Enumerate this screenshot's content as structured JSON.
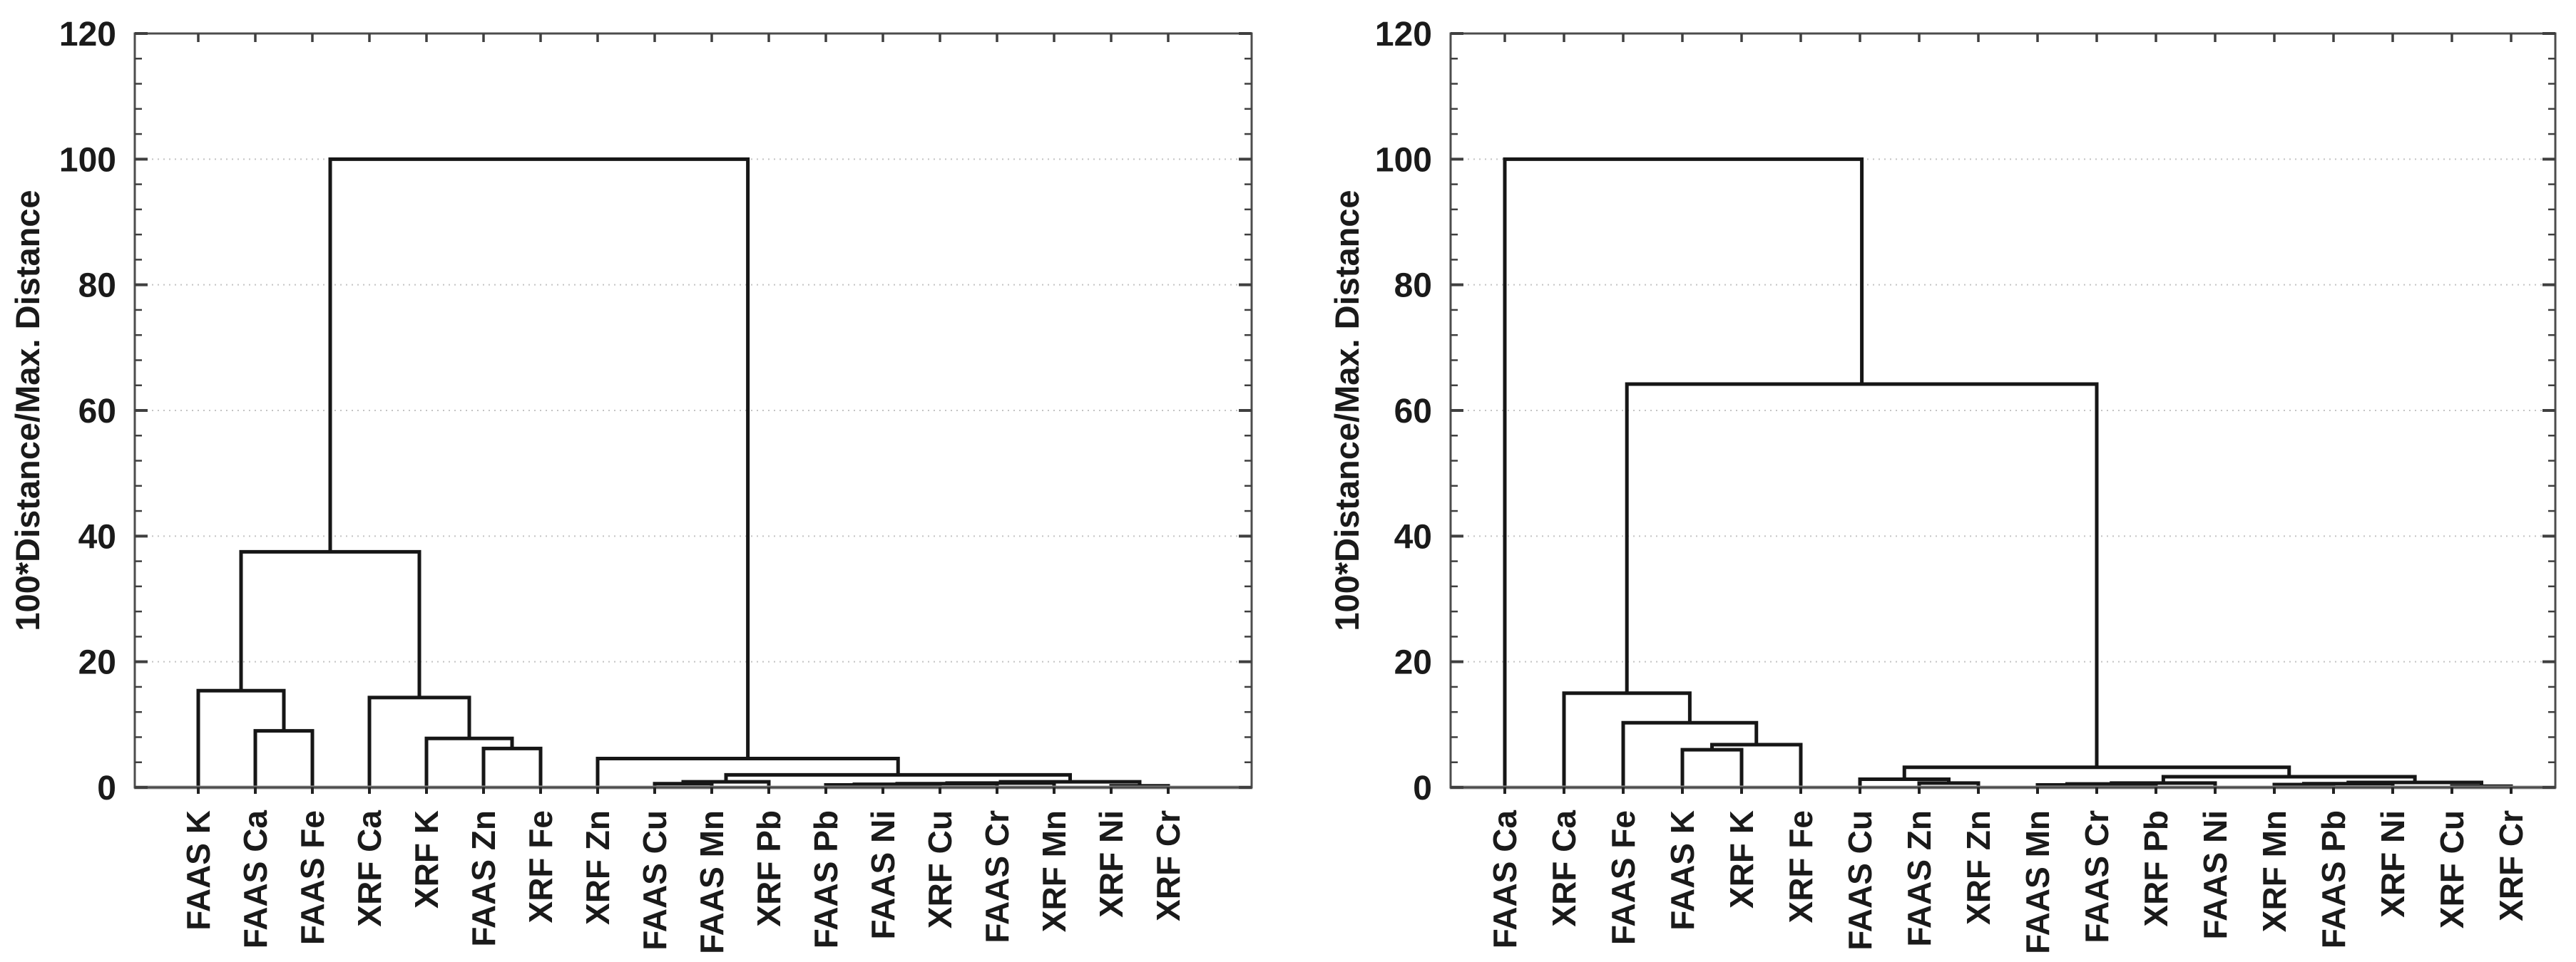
{
  "figure": {
    "description": "Two hierarchical cluster analysis dendrograms comparing FAAS and XRF element measurements",
    "background": "#ffffff"
  },
  "colors": {
    "tree_line": "#161616",
    "baseline": "#9c9c9c",
    "axis_box": "#4d4d4d",
    "gridline": "#c4c4c4",
    "tick": "#3f3f3f",
    "label_text": "#1a1a1a"
  },
  "chart_data": [
    {
      "type": "dendrogram",
      "panel": "left",
      "title": "",
      "xlabel": "",
      "ylabel": "100*Distance/Max. Distance",
      "ylim": [
        0,
        120
      ],
      "yticks": [
        0,
        20,
        40,
        60,
        80,
        100,
        120
      ],
      "minor_tick_step": 4,
      "grid": "dotted horizontal gridlines at major ticks",
      "legend": "none",
      "leaf_order": [
        "FAAS K",
        "FAAS Ca",
        "FAAS Fe",
        "XRF Ca",
        "XRF K",
        "FAAS Zn",
        "XRF Fe",
        "XRF Zn",
        "FAAS Cu",
        "FAAS Mn",
        "XRF Pb",
        "FAAS Pb",
        "FAAS Ni",
        "XRF Cu",
        "FAAS Cr",
        "XRF Mn",
        "XRF Ni",
        "XRF Cr"
      ],
      "tree": {
        "h": 100,
        "children": [
          {
            "h": 37.5,
            "children": [
              {
                "h": 15.4,
                "children": [
                  "FAAS K",
                  {
                    "h": 9.0,
                    "children": [
                      "FAAS Ca",
                      "FAAS Fe"
                    ]
                  }
                ]
              },
              {
                "h": 14.3,
                "children": [
                  "XRF Ca",
                  {
                    "h": 7.8,
                    "children": [
                      "XRF K",
                      {
                        "h": 6.2,
                        "children": [
                          "FAAS Zn",
                          "XRF Fe"
                        ]
                      }
                    ]
                  }
                ]
              }
            ]
          },
          {
            "h": 4.6,
            "children": [
              "XRF Zn",
              {
                "h": 2.0,
                "children": [
                  {
                    "h": 0.9,
                    "children": [
                      {
                        "h": 0.6,
                        "children": [
                          "FAAS Cu",
                          "FAAS Mn"
                        ]
                      },
                      "XRF Pb"
                    ]
                  },
                  {
                    "h": 0.9,
                    "children": [
                      {
                        "h": 0.7,
                        "children": [
                          {
                            "h": 0.6,
                            "children": [
                              {
                                "h": 0.5,
                                "children": [
                                  {
                                    "h": 0.4,
                                    "children": [
                                      "FAAS Pb",
                                      "FAAS Ni"
                                    ]
                                  },
                                  "XRF Cu"
                                ]
                              },
                              "FAAS Cr"
                            ]
                          },
                          "XRF Mn"
                        ]
                      },
                      {
                        "h": 0.25,
                        "children": [
                          "XRF Ni",
                          "XRF Cr"
                        ]
                      }
                    ]
                  }
                ]
              }
            ]
          }
        ]
      }
    },
    {
      "type": "dendrogram",
      "panel": "right",
      "title": "",
      "xlabel": "",
      "ylabel": "100*Distance/Max. Distance",
      "ylim": [
        0,
        120
      ],
      "yticks": [
        0,
        20,
        40,
        60,
        80,
        100,
        120
      ],
      "minor_tick_step": 4,
      "grid": "dotted horizontal gridlines at major ticks",
      "legend": "none",
      "leaf_order": [
        "FAAS Ca",
        "XRF Ca",
        "FAAS Fe",
        "FAAS K",
        "XRF K",
        "XRF Fe",
        "FAAS Cu",
        "FAAS Zn",
        "XRF Zn",
        "FAAS Mn",
        "FAAS Cr",
        "XRF Pb",
        "FAAS Ni",
        "XRF Mn",
        "FAAS Pb",
        "XRF Ni",
        "XRF Cu",
        "XRF Cr"
      ],
      "tree": {
        "h": 100,
        "children": [
          "FAAS Ca",
          {
            "h": 64.2,
            "children": [
              {
                "h": 15.0,
                "children": [
                  "XRF Ca",
                  {
                    "h": 10.3,
                    "children": [
                      "FAAS Fe",
                      {
                        "h": 6.8,
                        "children": [
                          {
                            "h": 6.0,
                            "children": [
                              "FAAS K",
                              "XRF K"
                            ]
                          },
                          "XRF Fe"
                        ]
                      }
                    ]
                  }
                ]
              },
              {
                "h": 3.2,
                "children": [
                  {
                    "h": 1.3,
                    "children": [
                      "FAAS Cu",
                      {
                        "h": 0.7,
                        "children": [
                          "FAAS Zn",
                          "XRF Zn"
                        ]
                      }
                    ]
                  },
                  {
                    "h": 1.7,
                    "children": [
                      {
                        "h": 0.7,
                        "children": [
                          {
                            "h": 0.55,
                            "children": [
                              {
                                "h": 0.4,
                                "children": [
                                  "FAAS Mn",
                                  "FAAS Cr"
                                ]
                              },
                              "XRF Pb"
                            ]
                          },
                          "FAAS Ni"
                        ]
                      },
                      {
                        "h": 0.8,
                        "children": [
                          {
                            "h": 0.6,
                            "children": [
                              {
                                "h": 0.45,
                                "children": [
                                  "XRF Mn",
                                  "FAAS Pb"
                                ]
                              },
                              "XRF Ni"
                            ]
                          },
                          {
                            "h": 0.2,
                            "children": [
                              "XRF Cu",
                              "XRF Cr"
                            ]
                          }
                        ]
                      }
                    ]
                  }
                ]
              }
            ]
          }
        ]
      }
    }
  ]
}
